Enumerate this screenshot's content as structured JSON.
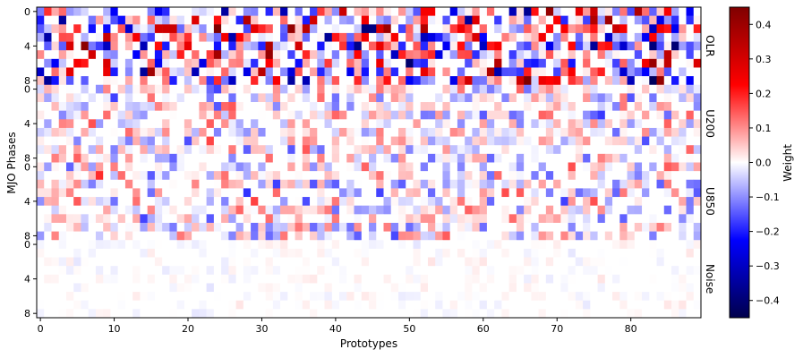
{
  "chart_data": {
    "type": "heatmap",
    "xlabel": "Prototypes",
    "ylabel": "MJO Phases",
    "x_ticks": [
      "0",
      "10",
      "20",
      "30",
      "40",
      "50",
      "60",
      "70",
      "80"
    ],
    "y_ticks": [
      "0",
      "4",
      "8"
    ],
    "panels": [
      {
        "name": "OLR",
        "rows": 9,
        "cols": 90,
        "seed": 11,
        "scale": 0.34,
        "density": 0.72
      },
      {
        "name": "U200",
        "rows": 9,
        "cols": 90,
        "seed": 23,
        "scale": 0.13,
        "density": 0.62
      },
      {
        "name": "U850",
        "rows": 9,
        "cols": 90,
        "seed": 37,
        "scale": 0.14,
        "density": 0.6
      },
      {
        "name": "Noise",
        "rows": 9,
        "cols": 90,
        "seed": 53,
        "scale": 0.02,
        "density": 0.35
      }
    ],
    "colorbar": {
      "label": "Weight",
      "cmap": "seismic",
      "vmin": -0.45,
      "vmax": 0.45,
      "ticks": [
        "0.4",
        "0.3",
        "0.2",
        "0.1",
        "0.0",
        "−0.1",
        "−0.2",
        "−0.3",
        "−0.4"
      ]
    }
  }
}
